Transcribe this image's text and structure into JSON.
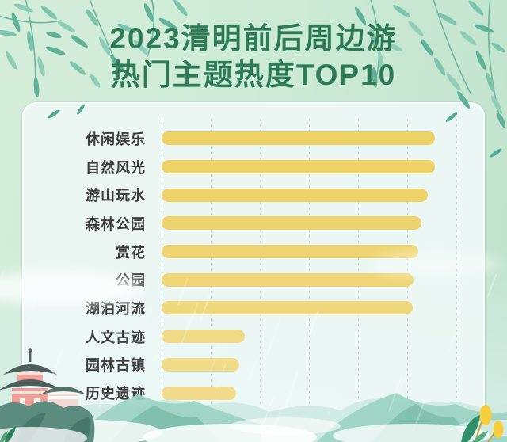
{
  "title": {
    "line1": "2023清明前后周边游",
    "line2": "热门主题热度TOP10"
  },
  "chart_data": {
    "type": "bar",
    "orientation": "horizontal",
    "title": "2023清明前后周边游热门主题热度TOP10",
    "categories": [
      "休闲娱乐",
      "自然风光",
      "游山玩水",
      "森林公园",
      "赏花",
      "公园",
      "湖泊河流",
      "人文古迹",
      "园林古镇",
      "历史遗迹"
    ],
    "values": [
      100,
      100,
      97.4,
      95.1,
      93.9,
      92.2,
      91.9,
      30.4,
      28.4,
      27.2
    ],
    "value_note": "relative heat index estimated from bar lengths; no numeric labels shown in image",
    "xlabel": "",
    "ylabel": "",
    "xlim": [
      0,
      115
    ],
    "grid": "vertical dashed gridlines, no tick labels",
    "legend": "none",
    "bar_colors": [
      "#ecd165",
      "#ecd167",
      "#edd26a",
      "#edd36e",
      "#eed572",
      "#eed677",
      "#efd87c",
      "#f1da86",
      "#f1db89",
      "#f2dc8c"
    ]
  },
  "colors": {
    "title_green": "#2d7a57",
    "label_dark": "#3d3d3d",
    "bar_gold": "#ecd165",
    "background_mint": "#cdebd6",
    "card_fill": "#edf8f6",
    "leaf_teal": "#66b89e",
    "mountain_teal": "#8ec9bb"
  },
  "decor": {
    "top_left": "willow-branches",
    "top_right": "willow-branches",
    "bottom_left": "pagoda-on-rock",
    "bottom": "watercolor-mountains-with-mist-and-rain",
    "bottom_right": "yellow-flower-plant"
  }
}
